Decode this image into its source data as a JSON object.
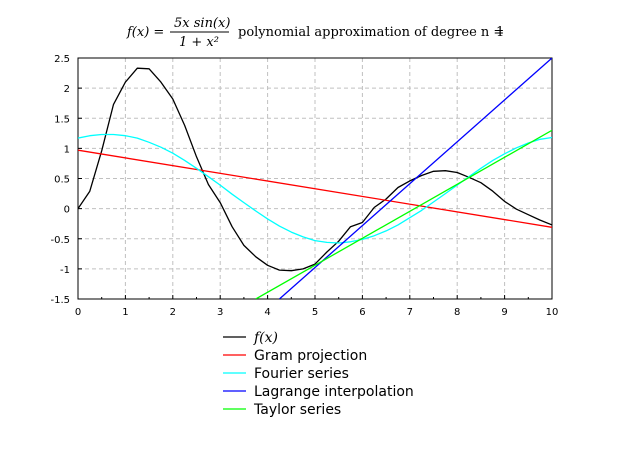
{
  "chart_data": {
    "type": "line",
    "title": {
      "formula_lhs": "f(x) =",
      "formula_numerator": "5x sin(x)",
      "formula_denominator": "1 + x²",
      "text": "polynomial approximation of degree n =",
      "degree": "1"
    },
    "xlim": [
      0,
      10
    ],
    "ylim": [
      -1.5,
      2.5
    ],
    "x_ticks": [
      "0",
      "1",
      "2",
      "3",
      "4",
      "5",
      "6",
      "7",
      "8",
      "9",
      "10"
    ],
    "y_ticks": [
      "2.5",
      "2",
      "1.5",
      "1",
      "0.5",
      "0",
      "-0.5",
      "-1",
      "-1.5"
    ],
    "grid": true,
    "legend_position": "below",
    "series": [
      {
        "name": "f(x)",
        "color": "#000000",
        "x": [
          0,
          0.25,
          0.5,
          0.75,
          1,
          1.25,
          1.5,
          1.75,
          2,
          2.25,
          2.5,
          2.75,
          3,
          3.25,
          3.5,
          3.75,
          4,
          4.25,
          4.5,
          4.75,
          5,
          5.25,
          5.5,
          5.75,
          6,
          6.25,
          6.5,
          6.75,
          7,
          7.25,
          7.5,
          7.75,
          8,
          8.25,
          8.5,
          8.75,
          9,
          9.25,
          9.5,
          9.75,
          10
        ],
        "y": [
          0,
          0.29,
          0.96,
          1.73,
          2.1,
          2.33,
          2.32,
          2.1,
          1.82,
          1.38,
          0.86,
          0.4,
          0.1,
          -0.3,
          -0.61,
          -0.8,
          -0.94,
          -1.02,
          -1.03,
          -1.0,
          -0.92,
          -0.72,
          -0.54,
          -0.3,
          -0.23,
          0.02,
          0.16,
          0.35,
          0.46,
          0.55,
          0.62,
          0.63,
          0.6,
          0.52,
          0.43,
          0.29,
          0.12,
          -0.01,
          -0.1,
          -0.19,
          -0.27
        ]
      },
      {
        "name": "Gram projection",
        "color": "#ff0000",
        "x": [
          0,
          10
        ],
        "y": [
          0.97,
          -0.31
        ]
      },
      {
        "name": "Fourier series",
        "color": "#00ffff",
        "x": [
          0,
          0.25,
          0.5,
          0.75,
          1,
          1.25,
          1.5,
          1.75,
          2,
          2.25,
          2.5,
          2.75,
          3,
          3.25,
          3.5,
          3.75,
          4,
          4.25,
          4.5,
          4.75,
          5,
          5.25,
          5.5,
          5.75,
          6,
          6.25,
          6.5,
          6.75,
          7,
          7.25,
          7.5,
          7.75,
          8,
          8.25,
          8.5,
          8.75,
          9,
          9.25,
          9.5,
          9.75,
          10
        ],
        "y": [
          1.17,
          1.21,
          1.23,
          1.23,
          1.21,
          1.17,
          1.1,
          1.02,
          0.92,
          0.8,
          0.67,
          0.53,
          0.39,
          0.24,
          0.1,
          -0.04,
          -0.17,
          -0.29,
          -0.39,
          -0.47,
          -0.53,
          -0.56,
          -0.57,
          -0.55,
          -0.51,
          -0.45,
          -0.37,
          -0.27,
          -0.15,
          -0.03,
          0.11,
          0.25,
          0.39,
          0.53,
          0.67,
          0.8,
          0.91,
          1.01,
          1.09,
          1.15,
          1.18
        ]
      },
      {
        "name": "Lagrange interpolation",
        "color": "#0000ff",
        "x": [
          4.25,
          10
        ],
        "y": [
          -1.5,
          2.5
        ]
      },
      {
        "name": "Taylor series",
        "color": "#00ff00",
        "x": [
          3.75,
          10
        ],
        "y": [
          -1.5,
          1.3
        ]
      }
    ]
  }
}
